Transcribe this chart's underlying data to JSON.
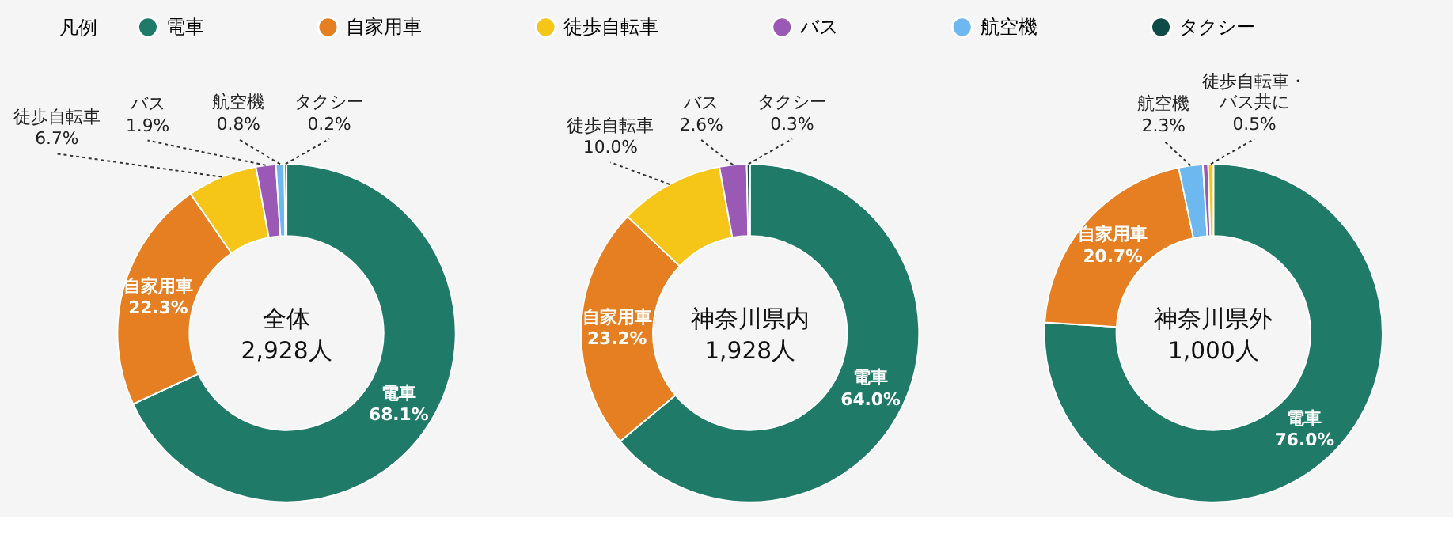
{
  "chart_data": [
    {
      "type": "donut",
      "title": "全体",
      "subtitle": "2,928人",
      "legend": "top",
      "legend_title": "凡例",
      "categories": [
        "電車",
        "自家用車",
        "徒歩自転車",
        "バス",
        "航空機",
        "タクシー"
      ],
      "values": [
        68.1,
        22.3,
        6.7,
        1.9,
        0.8,
        0.2
      ],
      "colors": [
        "#1f7a68",
        "#e67e22",
        "#f5c518",
        "#9b59b6",
        "#6cb8ef",
        "#0e4a47"
      ],
      "value_labels": [
        "68.1%",
        "22.3%",
        "6.7%",
        "1.9%",
        "0.8%",
        "0.2%"
      ]
    },
    {
      "type": "donut",
      "title": "神奈川県内",
      "subtitle": "1,928人",
      "categories": [
        "電車",
        "自家用車",
        "徒歩自転車",
        "バス",
        "タクシー"
      ],
      "values": [
        64.0,
        23.2,
        10.0,
        2.6,
        0.3
      ],
      "colors": [
        "#1f7a68",
        "#e67e22",
        "#f5c518",
        "#9b59b6",
        "#0e4a47"
      ],
      "value_labels": [
        "64.0%",
        "23.2%",
        "10.0%",
        "2.6%",
        "0.3%"
      ]
    },
    {
      "type": "donut",
      "title": "神奈川県外",
      "subtitle": "1,000人",
      "categories": [
        "電車",
        "自家用車",
        "航空機",
        "バス",
        "徒歩自転車"
      ],
      "values": [
        76.0,
        20.7,
        2.3,
        0.5,
        0.5
      ],
      "colors": [
        "#1f7a68",
        "#e67e22",
        "#6cb8ef",
        "#9b59b6",
        "#f5c518"
      ],
      "value_labels": [
        "76.0%",
        "20.7%",
        "2.3%",
        null,
        "0.5%"
      ],
      "annotations": [
        "徒歩自転車・バス共に"
      ]
    }
  ]
}
